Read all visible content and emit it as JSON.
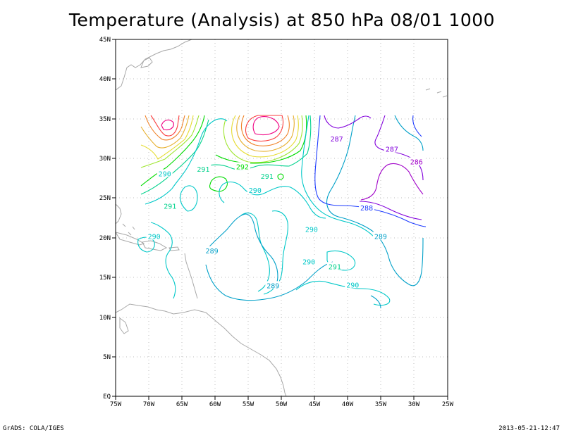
{
  "title": "Temperature (Analysis) at 850 hPa 08/01 1000",
  "footer": {
    "left": "GrADS: COLA/IGES",
    "right": "2013-05-21-12:47"
  },
  "map": {
    "lon_range": [
      -75,
      -25
    ],
    "lat_range": [
      0,
      45
    ],
    "grid": true,
    "x_ticks": [
      "75W",
      "70W",
      "65W",
      "60W",
      "55W",
      "50W",
      "45W",
      "40W",
      "35W",
      "30W",
      "25W"
    ],
    "y_ticks": [
      "EQ",
      "5N",
      "10N",
      "15N",
      "20N",
      "25N",
      "30N",
      "35N",
      "40N",
      "45N"
    ],
    "contour_colors": {
      "286": "#a000c8",
      "287": "#8200dc",
      "288": "#1e3cff",
      "289": "#00a0c8",
      "290": "#00c8c8",
      "291": "#00d28c",
      "292": "#00dc00",
      "293": "#a0e632",
      "294": "#e6dc32",
      "295": "#e6af2d",
      "296": "#f08228",
      "297": "#fa3c3c",
      "298": "#f00082"
    },
    "contour_labels": [
      {
        "text": "287",
        "lon": -41.7,
        "lat": 32.4,
        "color": "#8200dc"
      },
      {
        "text": "287",
        "lon": -33.4,
        "lat": 31.1,
        "color": "#8200dc"
      },
      {
        "text": "286",
        "lon": -29.7,
        "lat": 29.5,
        "color": "#a000c8"
      },
      {
        "text": "288",
        "lon": -37.2,
        "lat": 23.7,
        "color": "#1e3cff"
      },
      {
        "text": "289",
        "lon": -35.1,
        "lat": 20.1,
        "color": "#00a0c8"
      },
      {
        "text": "289",
        "lon": -60.5,
        "lat": 18.3,
        "color": "#00a0c8"
      },
      {
        "text": "289",
        "lon": -51.3,
        "lat": 13.9,
        "color": "#00a0c8"
      },
      {
        "text": "290",
        "lon": -67.6,
        "lat": 28.0,
        "color": "#00c8c8"
      },
      {
        "text": "290",
        "lon": -54.0,
        "lat": 25.9,
        "color": "#00c8c8"
      },
      {
        "text": "290",
        "lon": -69.2,
        "lat": 20.1,
        "color": "#00c8c8"
      },
      {
        "text": "290",
        "lon": -45.5,
        "lat": 21.0,
        "color": "#00c8c8"
      },
      {
        "text": "290",
        "lon": -45.9,
        "lat": 16.9,
        "color": "#00c8c8"
      },
      {
        "text": "290",
        "lon": -39.3,
        "lat": 14.0,
        "color": "#00c8c8"
      },
      {
        "text": "291",
        "lon": -61.8,
        "lat": 28.6,
        "color": "#00d28c"
      },
      {
        "text": "291",
        "lon": -52.2,
        "lat": 27.7,
        "color": "#00d28c"
      },
      {
        "text": "291",
        "lon": -66.8,
        "lat": 23.9,
        "color": "#00d28c"
      },
      {
        "text": "291",
        "lon": -42.0,
        "lat": 16.3,
        "color": "#00d28c"
      },
      {
        "text": "292",
        "lon": -55.9,
        "lat": 28.9,
        "color": "#00dc00"
      }
    ]
  }
}
